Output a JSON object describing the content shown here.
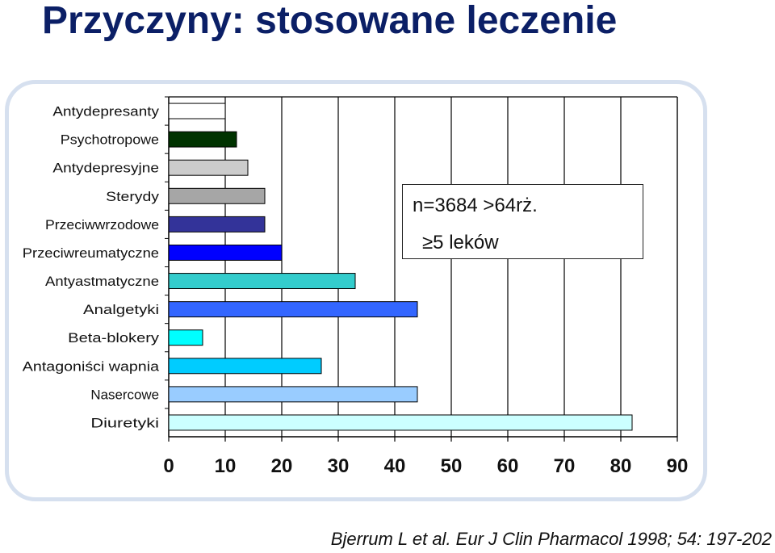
{
  "slide": {
    "title": "Przyczyny: stosowane leczenie",
    "note_line1": "n=3684 >64rż.",
    "note_line2": "≥5 leków",
    "citation": "Bjerrum L et al. Eur J Clin Pharmacol 1998; 54: 197-202"
  },
  "chart_data": {
    "type": "bar",
    "orientation": "horizontal",
    "title": "",
    "xlabel": "",
    "ylabel": "",
    "xlim": [
      0,
      90
    ],
    "xticks": [
      0,
      10,
      20,
      30,
      40,
      50,
      60,
      70,
      80,
      90
    ],
    "grid": true,
    "categories": [
      "Antydepresanty",
      "Psychotropowe",
      "Antydepresyjne",
      "Sterydy",
      "Przeciwwrzodowe",
      "Przeciwreumatyczne",
      "Antyastmatyczne",
      "Analgetyki",
      "Beta-blokery",
      "Antagoniści wapnia",
      "Nasercowe",
      "Diuretyki"
    ],
    "values": [
      10,
      12,
      14,
      17,
      17,
      20,
      33,
      44,
      6,
      27,
      44,
      82
    ],
    "colors": [
      "#ffffff",
      "#003300",
      "#cccccc",
      "#a6a6a6",
      "#333399",
      "#0000ff",
      "#33cccc",
      "#3366ff",
      "#00ffff",
      "#00ccff",
      "#99ccff",
      "#ccffff"
    ]
  }
}
